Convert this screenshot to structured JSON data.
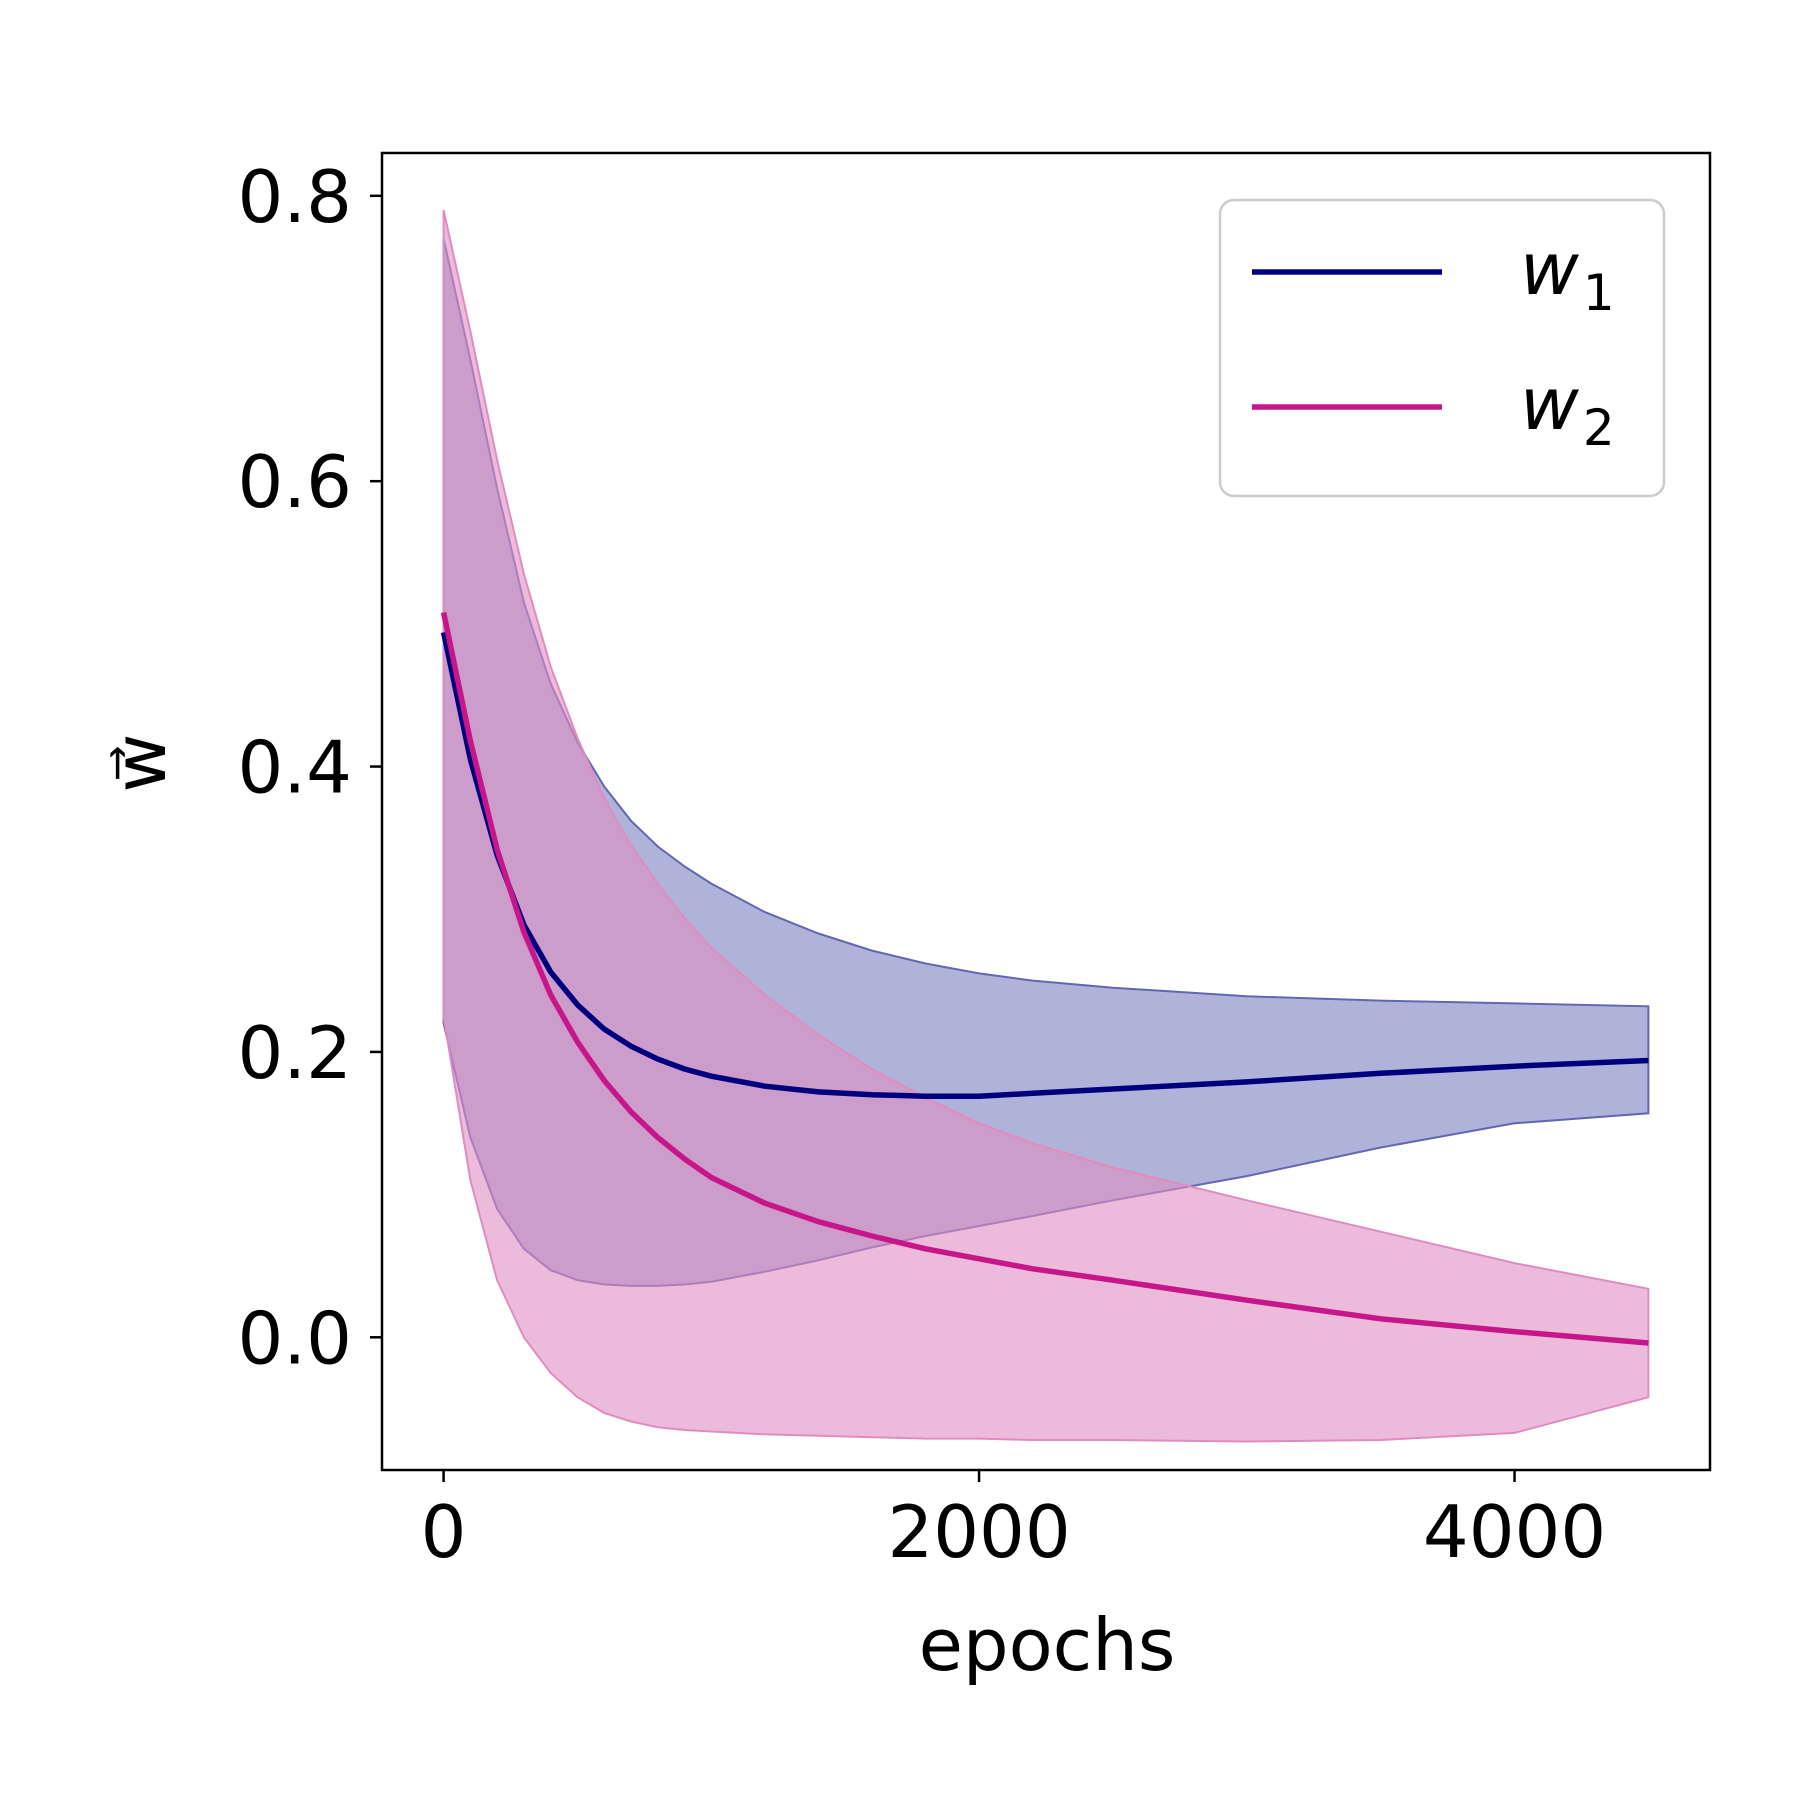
{
  "chart_data": {
    "type": "line",
    "xlabel": "epochs",
    "ylabel": "w⃗",
    "xlim": [
      -230,
      4730
    ],
    "ylim": [
      -0.093,
      0.83
    ],
    "xticks": [
      {
        "value": 0,
        "label": "0"
      },
      {
        "value": 2000,
        "label": "2000"
      },
      {
        "value": 4000,
        "label": "4000"
      }
    ],
    "yticks": [
      {
        "value": 0.0,
        "label": "0.0"
      },
      {
        "value": 0.2,
        "label": "0.2"
      },
      {
        "value": 0.4,
        "label": "0.4"
      },
      {
        "value": 0.6,
        "label": "0.6"
      },
      {
        "value": 0.8,
        "label": "0.8"
      }
    ],
    "grid": false,
    "legend_position": "top-right",
    "series": [
      {
        "name": "w₁",
        "label_base": "w",
        "label_sub": "1",
        "color": "#00007f",
        "band_color": "#6167b3",
        "x": [
          0,
          100,
          200,
          300,
          400,
          500,
          600,
          700,
          800,
          900,
          1000,
          1200,
          1400,
          1600,
          1800,
          2000,
          2200,
          2500,
          3000,
          3500,
          4000,
          4500
        ],
        "mean": [
          0.494,
          0.405,
          0.338,
          0.289,
          0.256,
          0.233,
          0.216,
          0.204,
          0.195,
          0.188,
          0.183,
          0.176,
          0.172,
          0.17,
          0.169,
          0.169,
          0.171,
          0.174,
          0.179,
          0.185,
          0.19,
          0.194
        ],
        "upper": [
          0.77,
          0.685,
          0.595,
          0.515,
          0.458,
          0.417,
          0.386,
          0.362,
          0.344,
          0.33,
          0.318,
          0.298,
          0.283,
          0.271,
          0.262,
          0.255,
          0.25,
          0.245,
          0.239,
          0.236,
          0.234,
          0.232
        ],
        "lower": [
          0.22,
          0.14,
          0.09,
          0.062,
          0.047,
          0.04,
          0.037,
          0.036,
          0.036,
          0.037,
          0.039,
          0.046,
          0.054,
          0.063,
          0.071,
          0.078,
          0.085,
          0.096,
          0.113,
          0.133,
          0.15,
          0.157
        ]
      },
      {
        "name": "w₂",
        "label_base": "w",
        "label_sub": "2",
        "color": "#c7168a",
        "band_color": "#e08cc1",
        "x": [
          0,
          100,
          200,
          300,
          400,
          500,
          600,
          700,
          800,
          900,
          1000,
          1200,
          1400,
          1600,
          1800,
          2000,
          2200,
          2500,
          3000,
          3500,
          4000,
          4500
        ],
        "mean": [
          0.508,
          0.418,
          0.342,
          0.284,
          0.24,
          0.207,
          0.18,
          0.158,
          0.14,
          0.125,
          0.112,
          0.094,
          0.081,
          0.071,
          0.062,
          0.055,
          0.048,
          0.04,
          0.026,
          0.013,
          0.004,
          -0.004
        ],
        "upper": [
          0.79,
          0.705,
          0.615,
          0.535,
          0.47,
          0.42,
          0.378,
          0.345,
          0.318,
          0.294,
          0.273,
          0.24,
          0.212,
          0.188,
          0.168,
          0.15,
          0.136,
          0.119,
          0.096,
          0.074,
          0.052,
          0.034
        ],
        "lower": [
          0.225,
          0.11,
          0.04,
          0.0,
          -0.025,
          -0.042,
          -0.053,
          -0.059,
          -0.063,
          -0.065,
          -0.066,
          -0.068,
          -0.069,
          -0.07,
          -0.071,
          -0.071,
          -0.072,
          -0.072,
          -0.073,
          -0.072,
          -0.067,
          -0.042
        ]
      }
    ]
  }
}
